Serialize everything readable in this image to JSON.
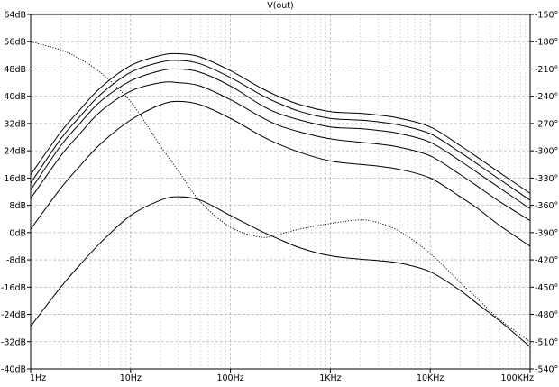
{
  "chart_data": {
    "type": "line",
    "title": "V(out)",
    "x_scale": "log",
    "xlim": [
      1,
      100000
    ],
    "x_ticks": [
      {
        "value": 1,
        "label": "1Hz"
      },
      {
        "value": 10,
        "label": "10Hz"
      },
      {
        "value": 100,
        "label": "100Hz"
      },
      {
        "value": 1000,
        "label": "1KHz"
      },
      {
        "value": 10000,
        "label": "10KHz"
      },
      {
        "value": 100000,
        "label": "100KHz"
      }
    ],
    "left_axis": {
      "unit": "dB",
      "ylim": [
        -40,
        64
      ],
      "ticks": [
        {
          "value": 64,
          "label": "64dB"
        },
        {
          "value": 56,
          "label": "56dB"
        },
        {
          "value": 48,
          "label": "48dB"
        },
        {
          "value": 40,
          "label": "40dB"
        },
        {
          "value": 32,
          "label": "32dB"
        },
        {
          "value": 24,
          "label": "24dB"
        },
        {
          "value": 16,
          "label": "16dB"
        },
        {
          "value": 8,
          "label": "8dB"
        },
        {
          "value": 0,
          "label": "0dB"
        },
        {
          "value": -8,
          "label": "-8dB"
        },
        {
          "value": -16,
          "label": "-16dB"
        },
        {
          "value": -24,
          "label": "-24dB"
        },
        {
          "value": -32,
          "label": "-32dB"
        },
        {
          "value": -40,
          "label": "-40dB"
        }
      ]
    },
    "right_axis": {
      "unit": "°",
      "ylim": [
        -540,
        -150
      ],
      "ticks": [
        {
          "value": -150,
          "label": "-150°"
        },
        {
          "value": -180,
          "label": "-180°"
        },
        {
          "value": -210,
          "label": "-210°"
        },
        {
          "value": -240,
          "label": "-240°"
        },
        {
          "value": -270,
          "label": "-270°"
        },
        {
          "value": -300,
          "label": "-300°"
        },
        {
          "value": -330,
          "label": "-330°"
        },
        {
          "value": -360,
          "label": "-360°"
        },
        {
          "value": -390,
          "label": "-390°"
        },
        {
          "value": -420,
          "label": "-420°"
        },
        {
          "value": -450,
          "label": "-450°"
        },
        {
          "value": -480,
          "label": "-480°"
        },
        {
          "value": -510,
          "label": "-510°"
        },
        {
          "value": -540,
          "label": "-540°"
        }
      ]
    },
    "grid": true,
    "x": [
      1,
      2,
      3,
      5,
      10,
      20,
      30,
      50,
      100,
      200,
      300,
      500,
      1000,
      2000,
      3000,
      5000,
      10000,
      20000,
      30000,
      50000,
      100000
    ],
    "magnitude_series": [
      {
        "values": [
          -27.5,
          -16,
          -10,
          -3,
          5,
          9.5,
          10.5,
          9.5,
          5,
          0.5,
          -1.8,
          -4.5,
          -6.8,
          -7.8,
          -8.2,
          -9,
          -11.5,
          -17,
          -21,
          -26,
          -33.5
        ]
      },
      {
        "values": [
          1,
          13,
          19,
          26,
          33,
          37.5,
          38.5,
          37.5,
          33.5,
          28.5,
          26,
          23.5,
          21,
          20,
          19.5,
          18.5,
          16,
          10.5,
          7,
          2,
          -4
        ]
      },
      {
        "values": [
          10,
          22.5,
          28.5,
          35.5,
          41.5,
          44,
          44,
          43,
          39,
          34,
          31.5,
          29.5,
          27.5,
          26.5,
          26,
          25,
          22.5,
          17,
          13.5,
          9,
          3.5
        ]
      },
      {
        "values": [
          12.5,
          25.5,
          31.5,
          38.5,
          44.5,
          47.5,
          48,
          47,
          43,
          37.5,
          35,
          33,
          31,
          30.5,
          30,
          29,
          26.5,
          21,
          17.5,
          13,
          7
        ]
      },
      {
        "values": [
          14.5,
          27.5,
          33.5,
          40.5,
          47,
          50,
          50.5,
          49.5,
          45.5,
          40.5,
          38,
          35.5,
          33.5,
          33,
          32.5,
          31.5,
          29,
          23.5,
          20,
          15.5,
          9.5
        ]
      },
      {
        "values": [
          17,
          29.5,
          35.5,
          42.5,
          49,
          52,
          52.5,
          51.5,
          47.5,
          42.5,
          40,
          37.5,
          35.5,
          35,
          34.5,
          33.5,
          31,
          25.5,
          22,
          17.5,
          11.5
        ]
      }
    ],
    "phase_series": [
      {
        "values": [
          -180,
          -189,
          -198,
          -214,
          -246,
          -295,
          -322,
          -356,
          -384,
          -395,
          -392,
          -386,
          -380,
          -376,
          -379,
          -389,
          -413,
          -445,
          -463,
          -486,
          -510
        ]
      }
    ]
  }
}
